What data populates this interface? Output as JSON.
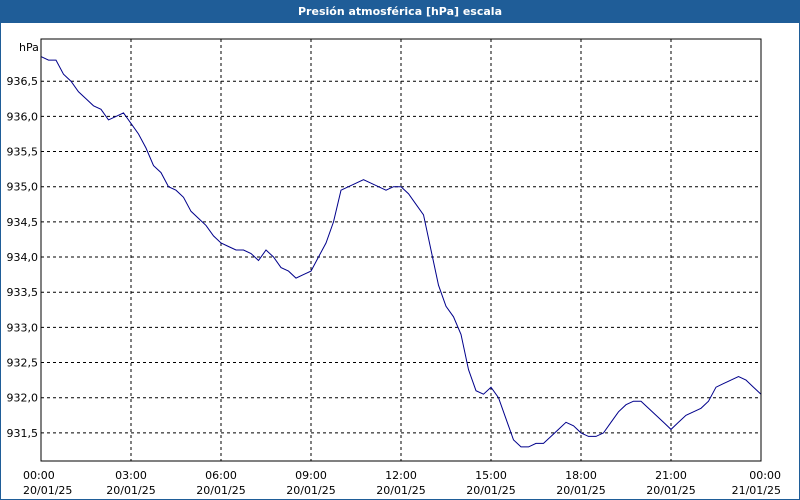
{
  "window": {
    "title": "Presión atmosférica [hPa] escala"
  },
  "colors": {
    "title_bg": "#1f5d98",
    "line": "#00008b",
    "grid": "#000000"
  },
  "chart_data": {
    "type": "line",
    "title": "Presión atmosférica [hPa] escala",
    "ylabel": "hPa",
    "xlabel": "",
    "grid": true,
    "ylim": [
      931.1,
      937.1
    ],
    "xlim_hours": [
      0,
      24
    ],
    "y_ticks": [
      "936,5",
      "936,0",
      "935,5",
      "935,0",
      "934,5",
      "934,0",
      "933,5",
      "933,0",
      "932,5",
      "932,0",
      "931,5"
    ],
    "y_tick_values": [
      936.5,
      936.0,
      935.5,
      935.0,
      934.5,
      934.0,
      933.5,
      933.0,
      932.5,
      932.0,
      931.5
    ],
    "x_ticks": [
      {
        "time": "00:00",
        "date": "20/01/25"
      },
      {
        "time": "03:00",
        "date": "20/01/25"
      },
      {
        "time": "06:00",
        "date": "20/01/25"
      },
      {
        "time": "09:00",
        "date": "20/01/25"
      },
      {
        "time": "12:00",
        "date": "20/01/25"
      },
      {
        "time": "15:00",
        "date": "20/01/25"
      },
      {
        "time": "18:00",
        "date": "20/01/25"
      },
      {
        "time": "21:00",
        "date": "20/01/25"
      },
      {
        "time": "00:00",
        "date": "21/01/25"
      }
    ],
    "series": [
      {
        "x": [
          0,
          0.25,
          0.5,
          0.75,
          1.0,
          1.25,
          1.5,
          1.75,
          2.0,
          2.25,
          2.5,
          2.75,
          3.0,
          3.25,
          3.5,
          3.75,
          4.0,
          4.25,
          4.5,
          4.75,
          5.0,
          5.25,
          5.5,
          5.75,
          6.0,
          6.25,
          6.5,
          6.75,
          7.0,
          7.25,
          7.5,
          7.75,
          8.0,
          8.25,
          8.5,
          8.75,
          9.0,
          9.25,
          9.5,
          9.75,
          10.0,
          10.25,
          10.5,
          10.75,
          11.0,
          11.25,
          11.5,
          11.75,
          12.0,
          12.25,
          12.5,
          12.75,
          13.0,
          13.25,
          13.5,
          13.75,
          14.0,
          14.25,
          14.5,
          14.75,
          15.0,
          15.25,
          15.5,
          15.75,
          16.0,
          16.25,
          16.5,
          16.75,
          17.0,
          17.25,
          17.5,
          17.75,
          18.0,
          18.25,
          18.5,
          18.75,
          19.0,
          19.25,
          19.5,
          19.75,
          20.0,
          20.25,
          20.5,
          20.75,
          21.0,
          21.25,
          21.5,
          21.75,
          22.0,
          22.25,
          22.5,
          22.75,
          23.0,
          23.25,
          23.5,
          23.75,
          24.0
        ],
        "values": [
          936.85,
          936.8,
          936.8,
          936.6,
          936.5,
          936.35,
          936.25,
          936.15,
          936.1,
          935.95,
          936.0,
          936.05,
          935.9,
          935.75,
          935.55,
          935.3,
          935.2,
          935.0,
          934.95,
          934.85,
          934.65,
          934.55,
          934.45,
          934.3,
          934.2,
          934.15,
          934.1,
          934.1,
          934.05,
          933.95,
          934.1,
          934.0,
          933.85,
          933.8,
          933.7,
          933.75,
          933.8,
          934.0,
          934.2,
          934.5,
          934.95,
          935.0,
          935.05,
          935.1,
          935.05,
          935.0,
          934.95,
          935.0,
          935.0,
          934.9,
          934.75,
          934.6,
          934.1,
          933.6,
          933.3,
          933.15,
          932.9,
          932.4,
          932.1,
          932.05,
          932.15,
          932.0,
          931.7,
          931.4,
          931.3,
          931.3,
          931.35,
          931.35,
          931.45,
          931.55,
          931.65,
          931.6,
          931.5,
          931.45,
          931.45,
          931.5,
          931.65,
          931.8,
          931.9,
          931.95,
          931.95,
          931.85,
          931.75,
          931.65,
          931.55,
          931.65,
          931.75,
          931.8,
          931.85,
          931.95,
          932.15,
          932.2,
          932.25,
          932.3,
          932.25,
          932.15,
          932.05
        ]
      }
    ]
  }
}
